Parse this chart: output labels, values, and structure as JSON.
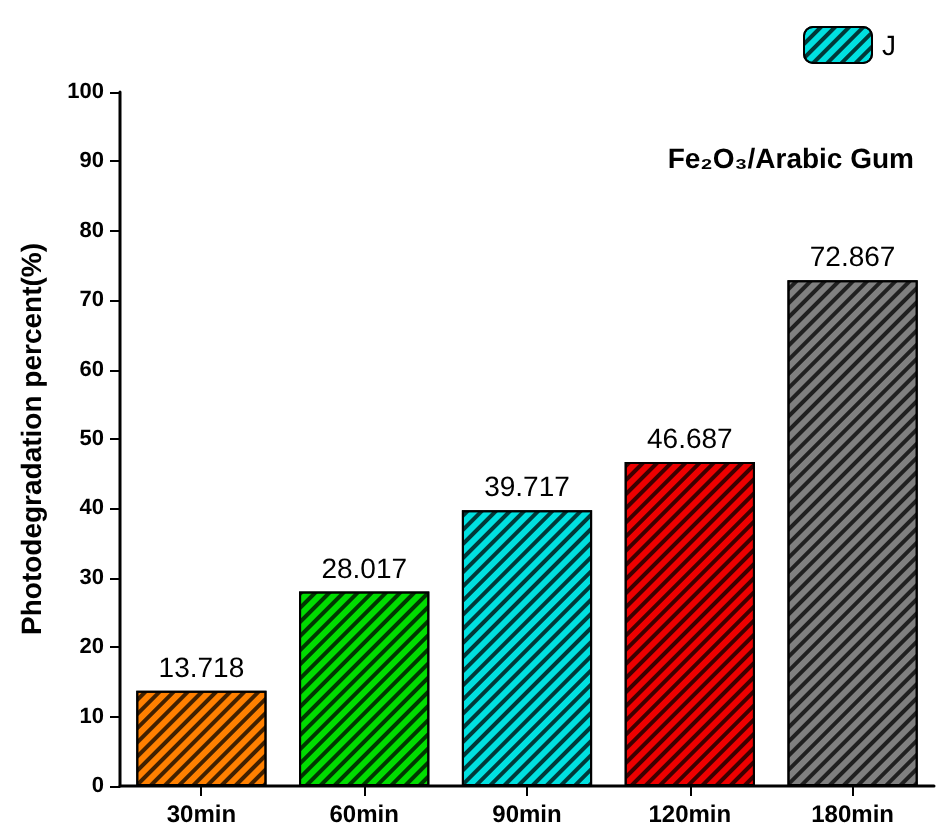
{
  "chart_data": {
    "type": "bar",
    "ylabel": "Photodegradation percent(%)",
    "categories": [
      "30min",
      "60min",
      "90min",
      "120min",
      "180min"
    ],
    "series": [
      {
        "name": "J",
        "color": "#00e0e0",
        "colors": [
          "#ff8000",
          "#00dd00",
          "#00e0e0",
          "#ee0000",
          "#808080"
        ],
        "values": [
          13.718,
          28.017,
          39.717,
          46.687,
          72.867
        ]
      }
    ],
    "ylim": [
      0,
      100
    ],
    "yticks": [
      0,
      10,
      20,
      30,
      40,
      50,
      60,
      70,
      80,
      90,
      100
    ],
    "data_labels": true,
    "grid": false,
    "legend": "top right",
    "annotations": [
      "Fe₂O₃/Arabic Gum"
    ]
  }
}
